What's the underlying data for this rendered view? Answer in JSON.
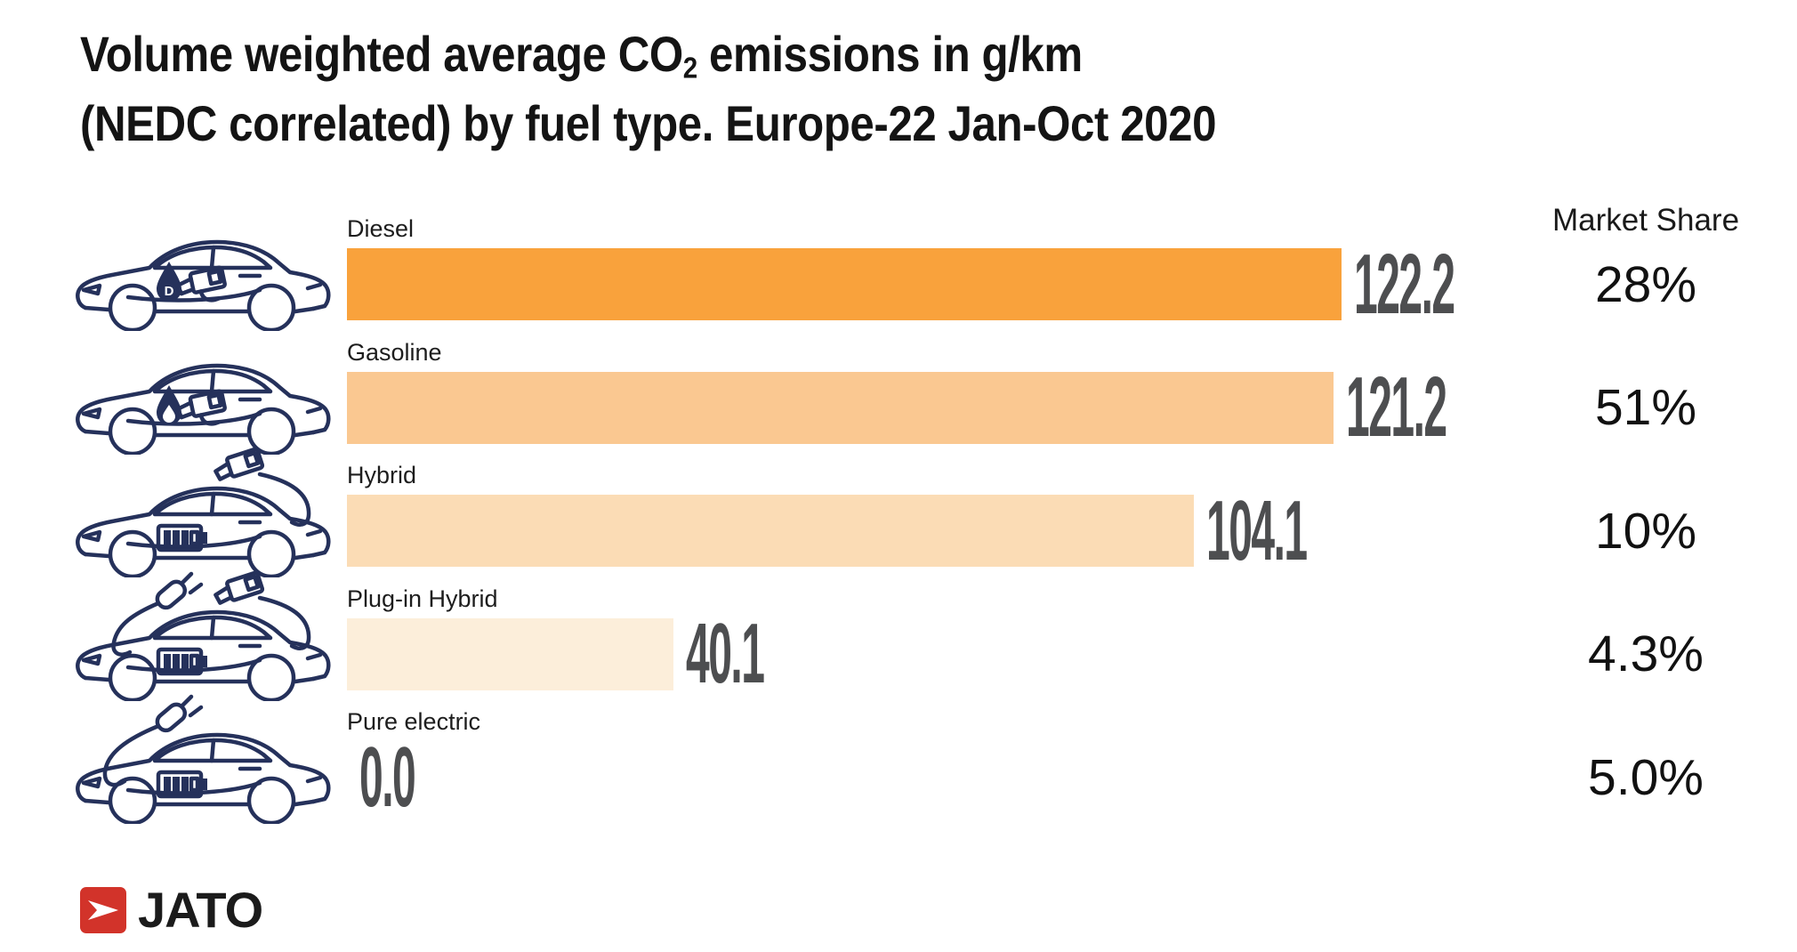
{
  "title": {
    "text_pre_sub": "Volume weighted average CO",
    "sub": "2",
    "text_post_sub": " emissions in g/km",
    "line2": "(NEDC correlated) by fuel type. Europe-22 Jan-Oct 2020"
  },
  "market_share": {
    "header": "Market Share"
  },
  "footer": {
    "brand": "JATO",
    "logo_icon": "jato-arrow-icon",
    "logo_color": "#D2332A"
  },
  "colors": {
    "value_text": "#4D4E50",
    "car_outline": "#25315B",
    "title_text": "#141414"
  },
  "chart_data": {
    "type": "bar",
    "orientation": "horizontal",
    "title": "Volume weighted average CO2 emissions in g/km (NEDC correlated) by fuel type. Europe-22 Jan-Oct 2020",
    "categories": [
      "Diesel",
      "Gasoline",
      "Hybrid",
      "Plug-in Hybrid",
      "Pure electric"
    ],
    "series": [
      {
        "name": "CO2 emissions g/km (NEDC correlated)",
        "values": [
          122.2,
          121.2,
          104.1,
          40.1,
          0.0
        ]
      }
    ],
    "value_labels": [
      "122.2",
      "121.2",
      "104.1",
      "40.1",
      "0.0"
    ],
    "market_share_labels": [
      "28%",
      "51%",
      "10%",
      "4.3%",
      "5.0%"
    ],
    "bar_colors": [
      "#F9A23C",
      "#FAC891",
      "#FBDCB5",
      "#FCEEDA",
      "none"
    ],
    "icons": [
      "diesel-car-icon",
      "gasoline-car-icon",
      "hybrid-car-icon",
      "plug-in-hybrid-car-icon",
      "pure-electric-car-icon"
    ],
    "xlim": [
      0,
      122.2
    ],
    "legend": "none",
    "grid": false
  }
}
